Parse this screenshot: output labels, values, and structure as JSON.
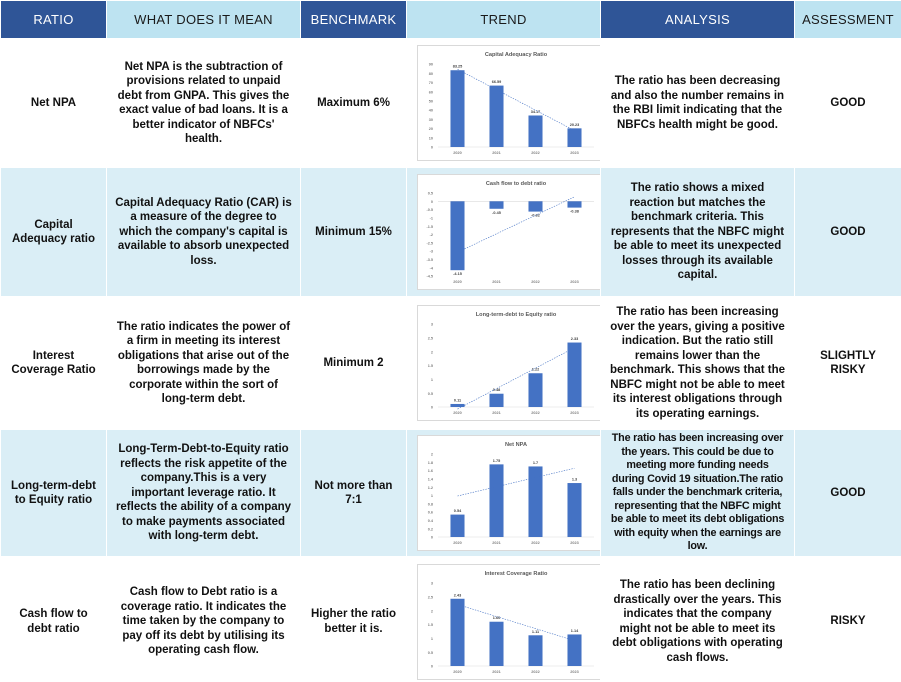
{
  "headers": {
    "ratio": "RATIO",
    "meaning": "WHAT DOES IT MEAN",
    "benchmark": "BENCHMARK",
    "trend": "TREND",
    "analysis": "ANALYSIS",
    "assessment": "ASSESSMENT"
  },
  "rows": [
    {
      "ratio": "Net NPA",
      "meaning": "Net NPA is the subtraction of provisions related to unpaid debt from GNPA. This gives the exact value of bad loans. It is a better indicator of NBFCs' health.",
      "benchmark": "Maximum 6%",
      "analysis": "The ratio has been decreasing and also the number remains in the RBI limit indicating that the NBFCs health might be good.",
      "assessment": "GOOD"
    },
    {
      "ratio": "Capital Adequacy ratio",
      "meaning": "Capital Adequacy Ratio (CAR) is a measure of the degree to which the company's capital is available to absorb unexpected loss.",
      "benchmark": "Minimum 15%",
      "analysis": "The ratio shows a mixed reaction but matches the benchmark criteria. This represents that the NBFC might be able to meet its unexpected losses through its available capital.",
      "assessment": "GOOD"
    },
    {
      "ratio": "Interest Coverage Ratio",
      "meaning": "The ratio indicates the power of a firm in meeting its interest obligations that arise out of the borrowings made by the corporate within the sort of long-term debt.",
      "benchmark": "Minimum 2",
      "analysis": "The ratio has been increasing over the years, giving a positive indication. But the ratio still remains lower than the benchmark. This shows that the NBFC might not be able to meet its interest obligations through its operating earnings.",
      "assessment": "SLIGHTLY RISKY"
    },
    {
      "ratio": "Long-term-debt to Equity ratio",
      "meaning": "Long-Term-Debt-to-Equity ratio reflects the risk appetite of the company.This is a very important leverage ratio. It reflects the ability of a company to make payments associated with long-term debt.",
      "benchmark": "Not more than 7:1",
      "analysis": "The ratio has been increasing over the years. This could be due to meeting more funding needs during Covid 19 situation.The ratio falls under the benchmark criteria, representing that the NBFC might be able to meet its debt obligations with equity when the earnings are low.",
      "assessment": "GOOD"
    },
    {
      "ratio": "Cash flow to debt ratio",
      "meaning": "Cash flow to Debt ratio is a coverage ratio. It indicates the time taken by the company to pay off its debt by utilising its operating cash flow.",
      "benchmark": "Higher the ratio better it is.",
      "analysis": "The ratio has been declining drastically over the years. This indicates that the company might not be able to meet its debt obligations with operating cash flows.",
      "assessment": "RISKY"
    }
  ],
  "colors": {
    "header_dark": "#2f5597",
    "header_light": "#bde3f1",
    "row_tint": "#daeef6",
    "bar": "#4472c4"
  },
  "chart_data": [
    {
      "type": "bar",
      "title": "Capital Adequacy Ratio",
      "categories": [
        "2020",
        "2021",
        "2022",
        "2023"
      ],
      "values": [
        83.25,
        66.59,
        34.17,
        20.23
      ],
      "value_labels": [
        "83.25",
        "66.59",
        "34.17",
        "20.23"
      ],
      "ylim": [
        0,
        90
      ],
      "yticks": [
        "0",
        "10",
        "20",
        "30",
        "40",
        "50",
        "60",
        "70",
        "80",
        "90"
      ],
      "trendline": true
    },
    {
      "type": "bar",
      "title": "Cash flow to debt ratio",
      "categories": [
        "2020",
        "2021",
        "2022",
        "2023"
      ],
      "values": [
        -4.15,
        -0.45,
        -0.62,
        -0.38
      ],
      "value_labels": [
        "-4.15",
        "-0.45",
        "-0.62",
        "-0.38"
      ],
      "ylim": [
        -4.5,
        0.5
      ],
      "yticks": [
        "-4.5",
        "-4",
        "-3.5",
        "-3",
        "-2.5",
        "-2",
        "-1.5",
        "-1",
        "-0.5",
        "0",
        "0.5"
      ],
      "trendline": true
    },
    {
      "type": "bar",
      "title": "Long-term-debt to Equity ratio",
      "categories": [
        "2020",
        "2021",
        "2022",
        "2023"
      ],
      "values": [
        0.11,
        0.48,
        1.22,
        2.33
      ],
      "value_labels": [
        "0.11",
        "0.48",
        "1.22",
        "2.33"
      ],
      "ylim": [
        0,
        3
      ],
      "yticks": [
        "0",
        "0.5",
        "1",
        "1.5",
        "2",
        "2.5",
        "3"
      ],
      "trendline": true
    },
    {
      "type": "bar",
      "title": "Net NPA",
      "categories": [
        "2020",
        "2021",
        "2022",
        "2023"
      ],
      "values": [
        0.54,
        1.75,
        1.7,
        1.3
      ],
      "value_labels": [
        "0.54",
        "1.75",
        "1.7",
        "1.3"
      ],
      "ylim": [
        0,
        2
      ],
      "yticks": [
        "0",
        "0.2",
        "0.4",
        "0.6",
        "0.8",
        "1",
        "1.2",
        "1.4",
        "1.6",
        "1.8",
        "2"
      ],
      "trendline": true
    },
    {
      "type": "bar",
      "title": "Interest Coverage Ratio",
      "categories": [
        "2020",
        "2021",
        "2022",
        "2023"
      ],
      "values": [
        2.43,
        1.6,
        1.11,
        1.14
      ],
      "value_labels": [
        "2.43",
        "1.60",
        "1.11",
        "1.14"
      ],
      "ylim": [
        0,
        3
      ],
      "yticks": [
        "0",
        "0.5",
        "1",
        "1.5",
        "2",
        "2.5",
        "3"
      ],
      "trendline": true
    }
  ]
}
